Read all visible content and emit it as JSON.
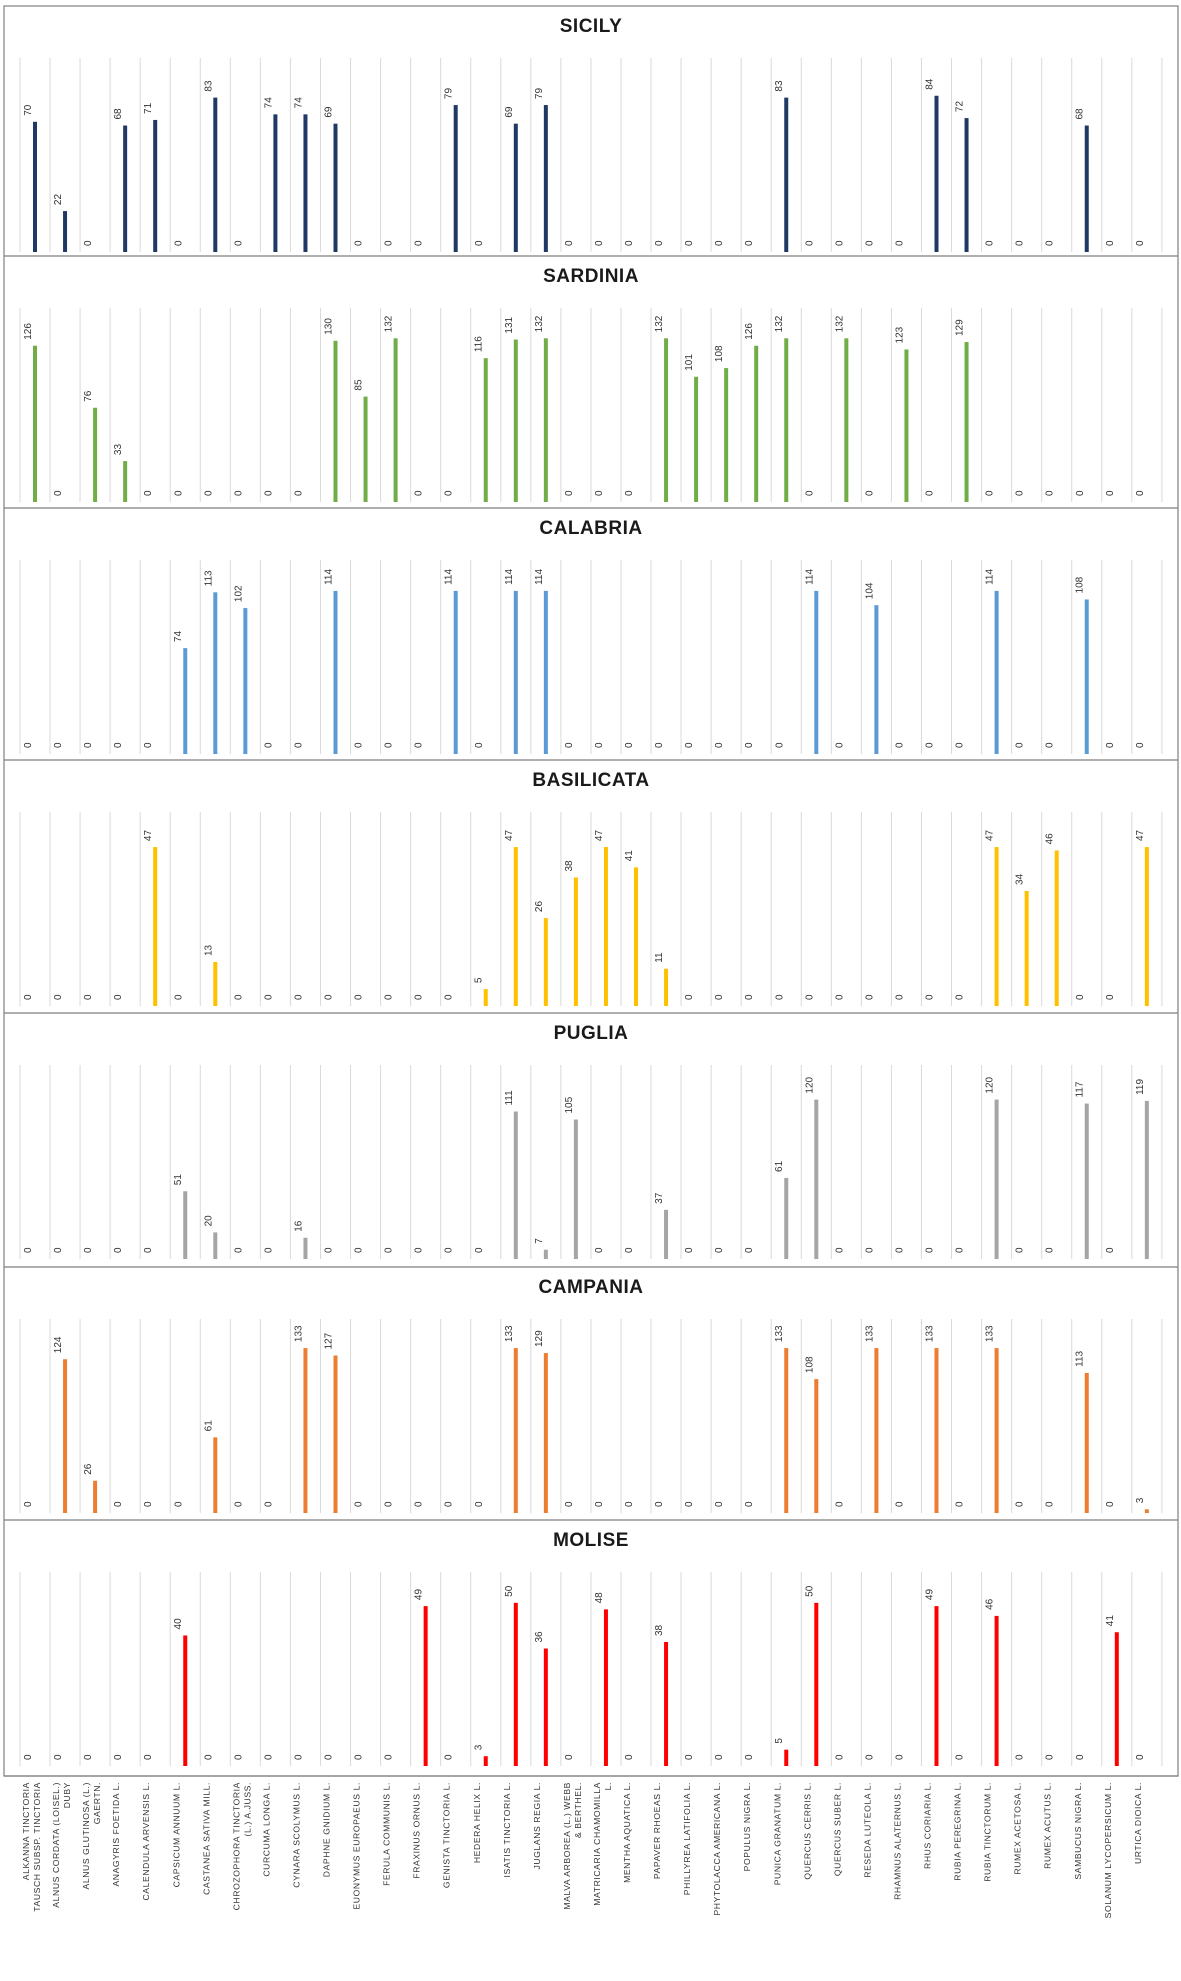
{
  "chart_data": {
    "type": "bar",
    "layout": "vertically stacked small multiples, one panel per region",
    "categories": [
      "ALKANNA TINCTORIA TAUSCH SUBSP. TINCTORIA",
      "ALNUS CORDATA (LOISEL.) DUBY",
      "ALNUS GLUTINOSA (L.) GAERTN.",
      "ANAGYRIS FOETIDA L.",
      "CALENDULA ARVENSIS L.",
      "CAPSICUM ANNUUM L.",
      "CASTANEA SATIVA MILL.",
      "CHROZOPHORA TINCTORIA (L.) A.JUSS.",
      "CURCUMA LONGA L.",
      "CYNARA SCOLYMUS L.",
      "DAPHNE GNIDIUM L.",
      "EUONYMUS EUROPAEUS L.",
      "FERULA COMMUNIS L.",
      "FRAXINUS ORNUS L.",
      "GENISTA TINCTORIA L.",
      "HEDERA HELIX L.",
      "ISATIS TINCTORIA L.",
      "JUGLANS REGIA L.",
      "MALVA ARBOREA (L.) WEBB & BERTHEL.",
      "MATRICARIA CHAMOMILLA L.",
      "MENTHA AQUATICA L.",
      "PAPAVER RHOEAS L.",
      "PHILLYREA LATIFOLIA L.",
      "PHYTOLACCA AMERICANA L.",
      "POPULUS NIGRA L.",
      "PUNICA GRANATUM L.",
      "QUERCUS CERRIS L.",
      "QUERCUS SUBER L.",
      "RESEDA LUTEOLA L.",
      "RHAMNUS ALATERNUS L.",
      "RHUS CORIARIA L.",
      "RUBIA PEREGRINA L.",
      "RUBIA TINCTORUM L.",
      "RUMEX ACETOSA L.",
      "RUMEX ACUTUS L.",
      "SAMBUCUS NIGRA L.",
      "SOLANUM LYCOPERSICUM L.",
      "URTICA DIOICA L."
    ],
    "category_lines": [
      [
        "ALKANNA TINCTORIA",
        "TAUSCH SUBSP. TINCTORIA"
      ],
      [
        "ALNUS CORDATA (LOISEL.)",
        "DUBY"
      ],
      [
        "ALNUS GLUTINOSA (L.)",
        "GAERTN."
      ],
      [
        "ANAGYRIS FOETIDA L."
      ],
      [
        "CALENDULA ARVENSIS L."
      ],
      [
        "CAPSICUM ANNUUM L."
      ],
      [
        "CASTANEA SATIVA MILL."
      ],
      [
        "CHROZOPHORA TINCTORIA",
        "(L.) A.JUSS."
      ],
      [
        "CURCUMA LONGA L."
      ],
      [
        "CYNARA SCOLYMUS L."
      ],
      [
        "DAPHNE GNIDIUM L."
      ],
      [
        "EUONYMUS EUROPAEUS L."
      ],
      [
        "FERULA COMMUNIS L."
      ],
      [
        "FRAXINUS ORNUS L."
      ],
      [
        "GENISTA TINCTORIA L."
      ],
      [
        "HEDERA HELIX L."
      ],
      [
        "ISATIS TINCTORIA L."
      ],
      [
        "JUGLANS REGIA L."
      ],
      [
        "MALVA ARBOREA (L.) WEBB",
        "& BERTHEL."
      ],
      [
        "MATRICARIA CHAMOMILLA",
        "L."
      ],
      [
        "MENTHA AQUATICA L."
      ],
      [
        "PAPAVER RHOEAS L."
      ],
      [
        "PHILLYREA LATIFOLIA L."
      ],
      [
        "PHYTOLACCA AMERICANA L."
      ],
      [
        "POPULUS NIGRA L."
      ],
      [
        "PUNICA GRANATUM L."
      ],
      [
        "QUERCUS CERRIS L."
      ],
      [
        "QUERCUS SUBER L."
      ],
      [
        "RESEDA LUTEOLA L."
      ],
      [
        "RHAMNUS ALATERNUS L."
      ],
      [
        "RHUS CORIARIA L."
      ],
      [
        "RUBIA PEREGRINA L."
      ],
      [
        "RUBIA TINCTORUM L."
      ],
      [
        "RUMEX ACETOSA L."
      ],
      [
        "RUMEX ACUTUS L."
      ],
      [
        "SAMBUCUS NIGRA L."
      ],
      [
        "SOLANUM LYCOPERSICUM L."
      ],
      [
        "URTICA DIOICA L."
      ]
    ],
    "series": [
      {
        "name": "SICILY",
        "color": "#1f3864",
        "ylim": [
          0,
          100
        ],
        "values": [
          70,
          22,
          0,
          68,
          71,
          0,
          83,
          0,
          74,
          74,
          69,
          0,
          0,
          0,
          79,
          0,
          69,
          79,
          0,
          0,
          0,
          0,
          0,
          0,
          0,
          83,
          0,
          0,
          0,
          0,
          84,
          72,
          0,
          0,
          0,
          68,
          0,
          0
        ]
      },
      {
        "name": "SARDINIA",
        "color": "#70ad47",
        "ylim": [
          0,
          150
        ],
        "values": [
          126,
          0,
          76,
          33,
          0,
          0,
          0,
          0,
          0,
          0,
          130,
          85,
          132,
          0,
          0,
          116,
          131,
          132,
          0,
          0,
          0,
          132,
          101,
          108,
          126,
          132,
          0,
          132,
          0,
          123,
          0,
          129,
          0,
          0,
          0,
          0,
          0,
          0
        ]
      },
      {
        "name": "CALABRIA",
        "color": "#5b9bd5",
        "ylim": [
          0,
          130
        ],
        "values": [
          0,
          0,
          0,
          0,
          0,
          74,
          113,
          102,
          0,
          0,
          114,
          0,
          0,
          0,
          114,
          0,
          114,
          114,
          0,
          0,
          0,
          0,
          0,
          0,
          0,
          0,
          114,
          0,
          104,
          0,
          0,
          0,
          114,
          0,
          0,
          108,
          0,
          0
        ]
      },
      {
        "name": "BASILICATA",
        "color": "#ffc000",
        "ylim": [
          0,
          55
        ],
        "values": [
          0,
          0,
          0,
          0,
          47,
          0,
          13,
          0,
          0,
          0,
          0,
          0,
          0,
          0,
          0,
          5,
          47,
          26,
          38,
          47,
          41,
          11,
          0,
          0,
          0,
          0,
          0,
          0,
          0,
          0,
          0,
          0,
          47,
          34,
          46,
          0,
          0,
          47
        ]
      },
      {
        "name": "PUGLIA",
        "color": "#a5a5a5",
        "ylim": [
          0,
          140
        ],
        "values": [
          0,
          0,
          0,
          0,
          0,
          51,
          20,
          0,
          0,
          16,
          0,
          0,
          0,
          0,
          0,
          0,
          111,
          7,
          105,
          0,
          0,
          37,
          0,
          0,
          0,
          61,
          120,
          0,
          0,
          0,
          0,
          0,
          120,
          0,
          0,
          117,
          0,
          119
        ]
      },
      {
        "name": "CAMPANIA",
        "color": "#ed7d31",
        "ylim": [
          0,
          150
        ],
        "values": [
          0,
          124,
          26,
          0,
          0,
          0,
          61,
          0,
          0,
          133,
          127,
          0,
          0,
          0,
          0,
          0,
          133,
          129,
          0,
          0,
          0,
          0,
          0,
          0,
          0,
          133,
          108,
          0,
          133,
          0,
          133,
          0,
          133,
          0,
          0,
          113,
          0,
          3
        ]
      },
      {
        "name": "MOLISE",
        "color": "#ff0000",
        "ylim": [
          0,
          57
        ],
        "values": [
          0,
          0,
          0,
          0,
          0,
          40,
          0,
          0,
          0,
          0,
          0,
          0,
          0,
          49,
          0,
          3,
          50,
          36,
          0,
          48,
          0,
          38,
          0,
          0,
          0,
          5,
          50,
          0,
          0,
          0,
          49,
          0,
          46,
          0,
          0,
          0,
          41,
          0
        ]
      }
    ],
    "title": "",
    "xlabel": "",
    "ylabel": "",
    "grid": "vertical gridlines between categories",
    "legend": "none (region name as panel title)"
  }
}
